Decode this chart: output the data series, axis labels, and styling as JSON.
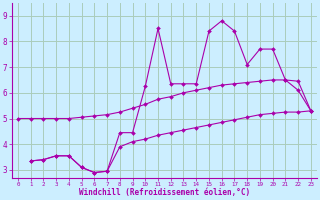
{
  "background_color": "#cceeff",
  "grid_color": "#aaccbb",
  "line_color": "#aa00aa",
  "xlabel": "Windchill (Refroidissement éolien,°C)",
  "xlim": [
    -0.5,
    23.5
  ],
  "ylim": [
    2.7,
    9.5
  ],
  "yticks": [
    3,
    4,
    5,
    6,
    7,
    8,
    9
  ],
  "xticks": [
    0,
    1,
    2,
    3,
    4,
    5,
    6,
    7,
    8,
    9,
    10,
    11,
    12,
    13,
    14,
    15,
    16,
    17,
    18,
    19,
    20,
    21,
    22,
    23
  ],
  "series": [
    {
      "x": [
        0,
        1,
        2,
        3,
        4,
        5,
        6,
        7,
        8,
        9,
        10,
        11,
        12,
        13,
        14,
        15,
        16,
        17,
        18,
        19,
        20,
        21,
        22,
        23
      ],
      "y": [
        5.0,
        5.0,
        5.0,
        5.0,
        5.0,
        5.05,
        5.1,
        5.15,
        5.25,
        5.4,
        5.55,
        5.75,
        5.85,
        6.0,
        6.1,
        6.2,
        6.3,
        6.35,
        6.4,
        6.45,
        6.5,
        6.5,
        6.45,
        5.3
      ]
    },
    {
      "x": [
        1,
        2,
        3,
        4,
        5,
        6,
        7,
        8,
        9,
        10,
        11,
        12,
        13,
        14,
        15,
        16,
        17,
        18,
        19,
        20,
        21,
        22,
        23
      ],
      "y": [
        3.35,
        3.4,
        3.55,
        3.55,
        3.1,
        2.9,
        2.95,
        3.9,
        4.1,
        4.2,
        4.35,
        4.45,
        4.55,
        4.65,
        4.75,
        4.85,
        4.95,
        5.05,
        5.15,
        5.2,
        5.25,
        5.25,
        5.3
      ]
    },
    {
      "x": [
        1,
        2,
        3,
        4,
        5,
        6,
        7,
        8,
        9,
        10,
        11,
        12,
        13,
        14,
        15,
        16,
        17,
        18,
        19,
        20,
        21,
        22,
        23
      ],
      "y": [
        3.35,
        3.4,
        3.55,
        3.55,
        3.1,
        2.9,
        2.95,
        4.45,
        4.45,
        6.25,
        8.5,
        6.35,
        6.35,
        6.35,
        8.4,
        8.8,
        8.4,
        7.1,
        7.7,
        7.7,
        6.5,
        6.1,
        5.3
      ]
    }
  ]
}
